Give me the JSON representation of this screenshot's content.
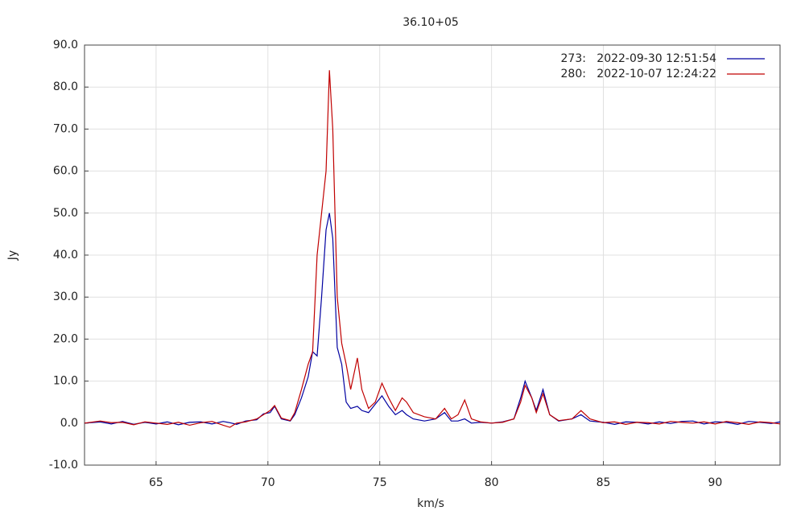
{
  "chart_data": {
    "type": "line",
    "title": "36.10+05",
    "xlabel": "km/s",
    "ylabel": "Jy",
    "x": [
      61.8,
      62.5,
      63,
      63.5,
      64,
      64.5,
      65,
      65.5,
      66,
      66.5,
      67,
      67.5,
      68,
      68.3,
      68.6,
      69,
      69.5,
      69.8,
      70.1,
      70.3,
      70.6,
      71,
      71.2,
      71.5,
      71.8,
      72,
      72.2,
      72.4,
      72.6,
      72.75,
      72.9,
      73.1,
      73.3,
      73.5,
      73.7,
      74,
      74.2,
      74.5,
      74.8,
      75.1,
      75.4,
      75.7,
      76,
      76.2,
      76.5,
      77,
      77.5,
      77.9,
      78.2,
      78.5,
      78.8,
      79.1,
      79.5,
      80,
      80.5,
      81,
      81.3,
      81.5,
      81.8,
      82,
      82.3,
      82.6,
      83,
      83.6,
      84,
      84.4,
      85,
      85.5,
      86,
      86.5,
      87,
      87.5,
      88,
      88.5,
      89,
      89.5,
      90,
      90.5,
      91,
      91.5,
      92,
      92.5,
      92.9
    ],
    "series": [
      {
        "name": "273:   2022-09-30 12:51:54",
        "color": "#0000a0",
        "values": [
          0,
          0.3,
          -0.2,
          0.4,
          -0.3,
          0.2,
          -0.2,
          0.3,
          -0.4,
          0.2,
          0.3,
          -0.2,
          0.4,
          0.1,
          -0.3,
          0.5,
          0.8,
          2.2,
          2.5,
          4,
          1,
          0.5,
          2,
          6,
          11,
          17,
          16,
          30,
          46,
          50,
          44,
          18,
          14,
          5,
          3.5,
          4,
          3,
          2.5,
          4.5,
          6.5,
          4,
          2,
          3,
          2,
          1,
          0.5,
          1,
          2.5,
          0.5,
          0.5,
          1,
          0,
          0.2,
          0,
          0.3,
          1,
          6,
          10,
          6,
          3,
          8,
          2,
          0.5,
          1,
          2,
          0.5,
          0.2,
          -0.3,
          0.3,
          0.2,
          -0.2,
          0.3,
          -0.1,
          0.4,
          0.5,
          -0.2,
          0.3,
          0.2,
          -0.3,
          0.4,
          0.2,
          -0.1,
          0.3
        ]
      },
      {
        "name": "280:   2022-10-07 12:24:22",
        "color": "#c00000",
        "values": [
          0,
          0.5,
          0.1,
          0.2,
          -0.4,
          0.3,
          0,
          -0.3,
          0.2,
          -0.5,
          0.1,
          0.4,
          -0.5,
          -1,
          0,
          0.3,
          1,
          2,
          3,
          4.2,
          1.2,
          0.6,
          2.5,
          8,
          14,
          17,
          40,
          50,
          60,
          84,
          70,
          30,
          19,
          14,
          8,
          15.5,
          8,
          3.5,
          5,
          9.5,
          6,
          3,
          6,
          5,
          2.5,
          1.5,
          1,
          3.5,
          1,
          2,
          5.5,
          1,
          0.3,
          0,
          0.2,
          1,
          5,
          9,
          6,
          2.5,
          7,
          2,
          0.6,
          1,
          3,
          1,
          0.1,
          0.3,
          -0.3,
          0.2,
          0.1,
          -0.2,
          0.4,
          0.2,
          0,
          0.3,
          -0.2,
          0.4,
          0.1,
          -0.3,
          0.3,
          0.1,
          -0.2
        ]
      }
    ],
    "xlim": [
      61.8,
      92.9
    ],
    "xticks": [
      65,
      70,
      75,
      80,
      85,
      90
    ],
    "ylim": [
      -10,
      90
    ],
    "yticks": [
      {
        "value": -10,
        "label": "-10.0"
      },
      {
        "value": 0,
        "label": "0.0"
      },
      {
        "value": 10,
        "label": "10.0"
      },
      {
        "value": 20,
        "label": "20.0"
      },
      {
        "value": 30,
        "label": "30.0"
      },
      {
        "value": 40,
        "label": "40.0"
      },
      {
        "value": 50,
        "label": "50.0"
      },
      {
        "value": 60,
        "label": "60.0"
      },
      {
        "value": 70,
        "label": "70.0"
      },
      {
        "value": 80,
        "label": "80.0"
      },
      {
        "value": 90,
        "label": "90.0"
      }
    ],
    "grid": true,
    "legend": "top-right"
  }
}
